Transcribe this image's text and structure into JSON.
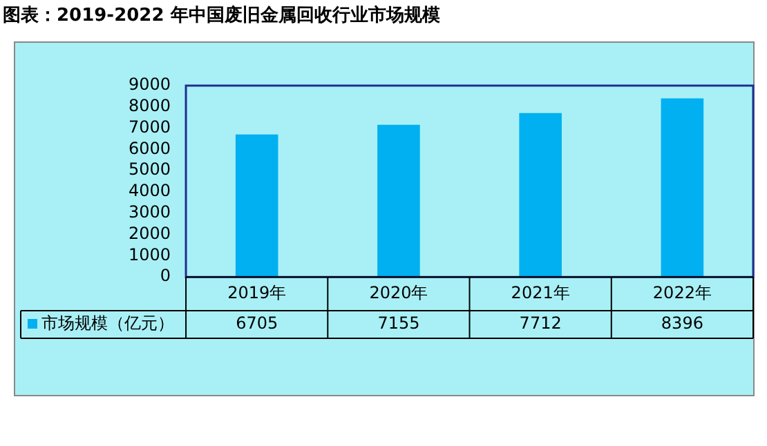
{
  "chart_data": {
    "type": "bar",
    "title": "图表：2019-2022 年中国废旧金属回收行业市场规模",
    "categories": [
      "2019年",
      "2020年",
      "2021年",
      "2022年"
    ],
    "series": [
      {
        "name": "市场规模（亿元）",
        "color": "#00b0f0",
        "values": [
          6705,
          7155,
          7712,
          8396
        ]
      }
    ],
    "ylim": [
      0,
      9000
    ],
    "yticks": [
      0,
      1000,
      2000,
      3000,
      4000,
      5000,
      6000,
      7000,
      8000,
      9000
    ],
    "grid": false,
    "legend": "bottom",
    "data_labels": true
  }
}
